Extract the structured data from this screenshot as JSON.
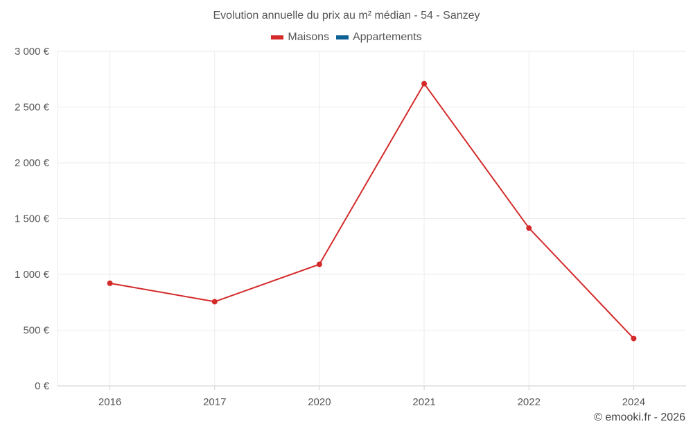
{
  "chart_data": {
    "type": "line",
    "title": "Evolution annuelle du prix au m² médian - 54 - Sanzey",
    "categories": [
      "2016",
      "2017",
      "2020",
      "2021",
      "2022",
      "2024"
    ],
    "series": [
      {
        "name": "Maisons",
        "color": "#d42a2a",
        "values": [
          920,
          755,
          1090,
          2710,
          1415,
          425
        ]
      },
      {
        "name": "Appartements",
        "color": "#0e6193",
        "values": [
          null,
          null,
          null,
          null,
          null,
          null
        ]
      }
    ],
    "y_ticks": [
      0,
      500,
      1000,
      1500,
      2000,
      2500,
      3000
    ],
    "y_tick_labels": [
      "0 €",
      "500 €",
      "1 000 €",
      "1 500 €",
      "2 000 €",
      "2 500 €",
      "3 000 €"
    ],
    "ylim": [
      0,
      3000
    ],
    "xlabel": "",
    "ylabel": "",
    "grid": true,
    "legend_position": "top-center"
  },
  "credit": "© emooki.fr - 2026"
}
